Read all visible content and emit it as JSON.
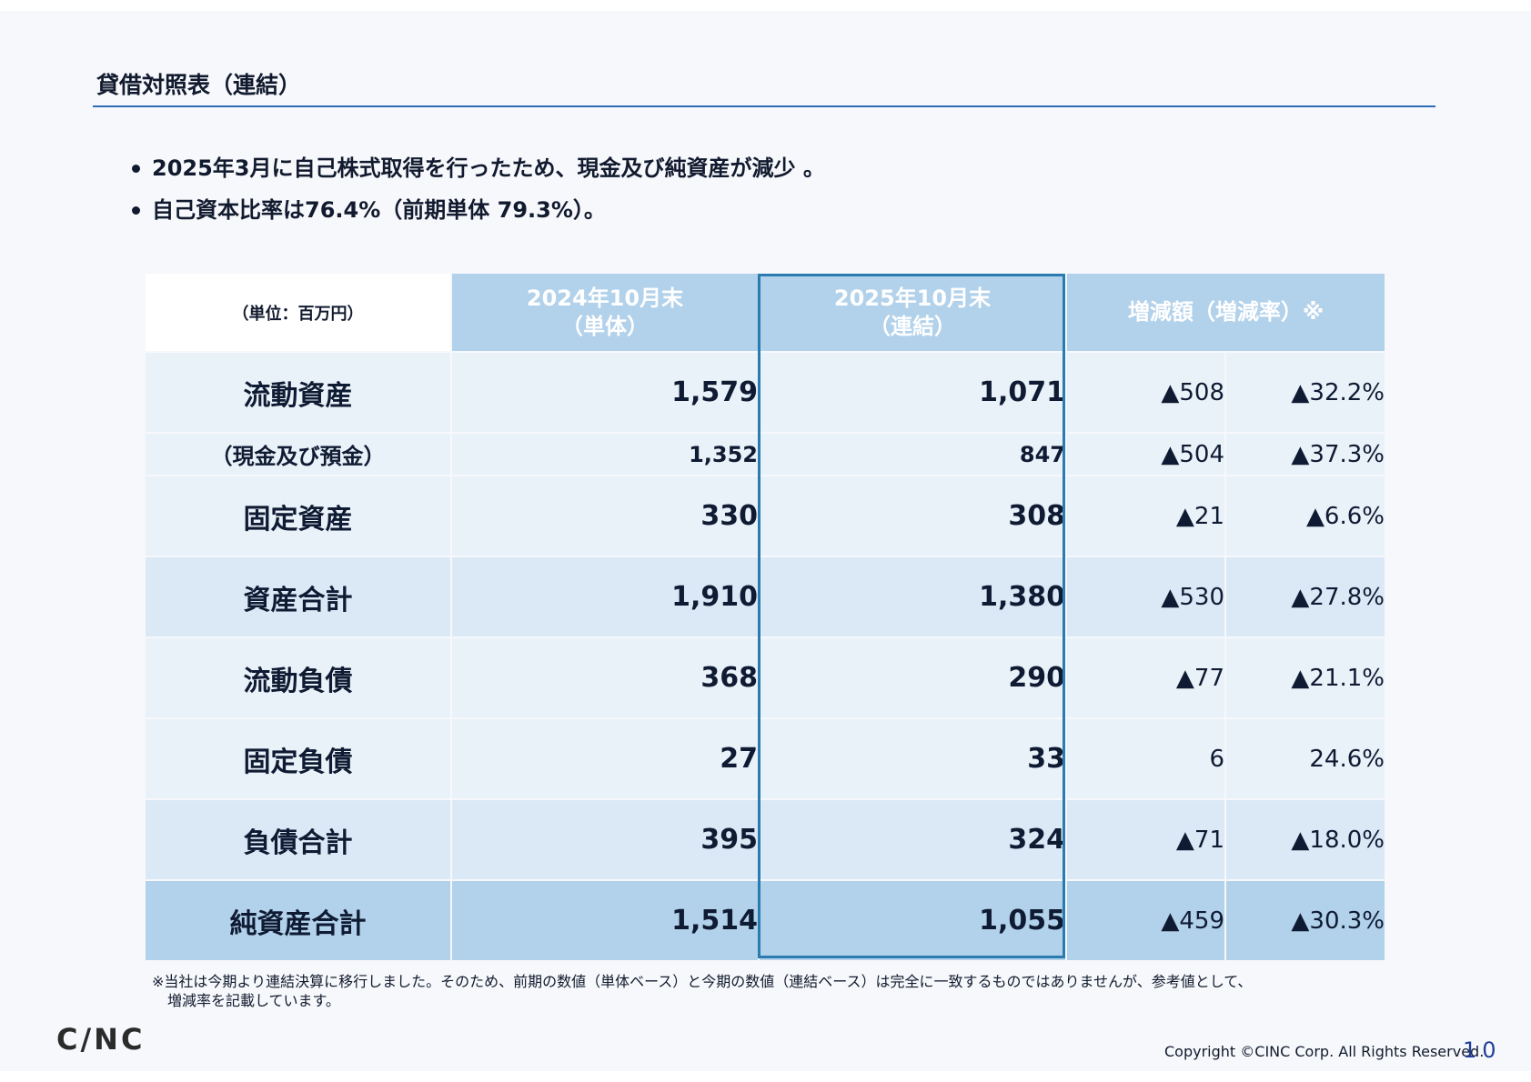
{
  "page": {
    "title": "貸借対照表（連結）",
    "bullets": [
      "2025年3月に自己株式取得を行ったため、現金及び純資産が減少 。",
      "自己資本比率は76.4%（前期単体 79.3%）。"
    ]
  },
  "table": {
    "unit_label": "（単位：百万円）",
    "headers": {
      "prev_line1": "2024年10月末",
      "prev_line2": "（単体）",
      "curr_line1": "2025年10月末",
      "curr_line2": "（連結）",
      "change": "増減額（増減率）※"
    },
    "rows": [
      {
        "label": "流動資産",
        "prev": "1,579",
        "curr": "1,071",
        "diff": "▲508",
        "rate": "▲32.2%"
      },
      {
        "label": "（現金及び預金）",
        "prev": "1,352",
        "curr": "847",
        "diff": "▲504",
        "rate": "▲37.3%"
      },
      {
        "label": "固定資産",
        "prev": "330",
        "curr": "308",
        "diff": "▲21",
        "rate": "▲6.6%"
      },
      {
        "label": "資産合計",
        "prev": "1,910",
        "curr": "1,380",
        "diff": "▲530",
        "rate": "▲27.8%"
      },
      {
        "label": "流動負債",
        "prev": "368",
        "curr": "290",
        "diff": "▲77",
        "rate": "▲21.1%"
      },
      {
        "label": "固定負債",
        "prev": "27",
        "curr": "33",
        "diff": "6",
        "rate": "24.6%"
      },
      {
        "label": "負債合計",
        "prev": "395",
        "curr": "324",
        "diff": "▲71",
        "rate": "▲18.0%"
      },
      {
        "label": "純資産合計",
        "prev": "1,514",
        "curr": "1,055",
        "diff": "▲459",
        "rate": "▲30.3%"
      }
    ]
  },
  "footnote": {
    "line1": "※当社は今期より連結決算に移行しました。そのため、前期の数値（単体ベース）と今期の数値（連結ベース）は完全に一致するものではありませんが、参考値として、",
    "line2": "増減率を記載しています。"
  },
  "footer": {
    "logo": "C/NC",
    "copyright": "Copyright ©CINC Corp. All Rights Reserved.",
    "page_number": "10"
  },
  "colors": {
    "header_bg": "#b2d1ea",
    "row_light": "#eaf2f9",
    "row_total": "#dbe9f7",
    "highlight_border": "#2a7bb0",
    "title_rule": "#2f6db5"
  }
}
